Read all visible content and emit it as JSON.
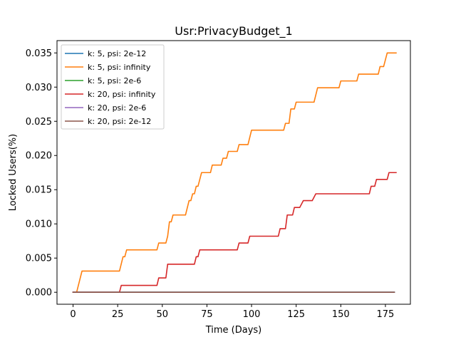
{
  "chart_data": {
    "type": "line",
    "title": "Usr:PrivacyBudget_1",
    "xlabel": "Time (Days)",
    "ylabel": "Locked Users(%)",
    "xlim": [
      -9,
      189
    ],
    "ylim": [
      -0.00175,
      0.0368
    ],
    "x_ticks": [
      0,
      25,
      50,
      75,
      100,
      125,
      150,
      175
    ],
    "y_ticks": [
      0.0,
      0.005,
      0.01,
      0.015,
      0.02,
      0.025,
      0.03,
      0.035
    ],
    "x_tick_labels": [
      "0",
      "25",
      "50",
      "75",
      "100",
      "125",
      "150",
      "175"
    ],
    "y_tick_labels": [
      "0.000",
      "0.005",
      "0.010",
      "0.015",
      "0.020",
      "0.025",
      "0.030",
      "0.035"
    ],
    "legend_position": "top-left",
    "series": [
      {
        "name": "k: 5, psi: 2e-12",
        "color": "#1f77b4",
        "points": [
          [
            0,
            0
          ],
          [
            180,
            0
          ]
        ]
      },
      {
        "name": "k: 5, psi: infinity",
        "color": "#ff7f0e",
        "points": [
          [
            0,
            0
          ],
          [
            2,
            0
          ],
          [
            5,
            0.0031
          ],
          [
            26,
            0.0031
          ],
          [
            28,
            0.0052
          ],
          [
            29,
            0.0052
          ],
          [
            30,
            0.0062
          ],
          [
            47,
            0.0062
          ],
          [
            48,
            0.0072
          ],
          [
            52,
            0.0072
          ],
          [
            53,
            0.0082
          ],
          [
            54,
            0.0103
          ],
          [
            55,
            0.0103
          ],
          [
            56,
            0.0113
          ],
          [
            63,
            0.0113
          ],
          [
            65,
            0.0134
          ],
          [
            66,
            0.0134
          ],
          [
            67,
            0.0144
          ],
          [
            68,
            0.0144
          ],
          [
            69,
            0.0155
          ],
          [
            70,
            0.0155
          ],
          [
            72,
            0.0175
          ],
          [
            77,
            0.0175
          ],
          [
            78,
            0.0186
          ],
          [
            83,
            0.0186
          ],
          [
            84,
            0.0196
          ],
          [
            86,
            0.0196
          ],
          [
            87,
            0.0206
          ],
          [
            92,
            0.0206
          ],
          [
            93,
            0.0216
          ],
          [
            98,
            0.0216
          ],
          [
            100,
            0.0237
          ],
          [
            118,
            0.0237
          ],
          [
            119,
            0.0247
          ],
          [
            121,
            0.0247
          ],
          [
            122,
            0.0268
          ],
          [
            124,
            0.0268
          ],
          [
            125,
            0.0278
          ],
          [
            135,
            0.0278
          ],
          [
            137,
            0.0299
          ],
          [
            149,
            0.0299
          ],
          [
            150,
            0.0309
          ],
          [
            159,
            0.0309
          ],
          [
            160,
            0.0319
          ],
          [
            171,
            0.0319
          ],
          [
            172,
            0.033
          ],
          [
            174,
            0.033
          ],
          [
            176,
            0.035
          ],
          [
            181,
            0.035
          ]
        ]
      },
      {
        "name": "k: 5, psi: 2e-6",
        "color": "#2ca02c",
        "points": [
          [
            0,
            0
          ],
          [
            180,
            0
          ]
        ]
      },
      {
        "name": "k: 20, psi: infinity",
        "color": "#d62728",
        "points": [
          [
            0,
            0
          ],
          [
            26,
            0
          ],
          [
            27,
            0.001
          ],
          [
            47,
            0.001
          ],
          [
            48,
            0.0021
          ],
          [
            52,
            0.0021
          ],
          [
            53,
            0.0041
          ],
          [
            68,
            0.0041
          ],
          [
            69,
            0.0052
          ],
          [
            70,
            0.0052
          ],
          [
            71,
            0.0062
          ],
          [
            92,
            0.0062
          ],
          [
            93,
            0.0072
          ],
          [
            98,
            0.0072
          ],
          [
            99,
            0.0082
          ],
          [
            115,
            0.0082
          ],
          [
            116,
            0.0093
          ],
          [
            119,
            0.0093
          ],
          [
            120,
            0.0113
          ],
          [
            123,
            0.0113
          ],
          [
            124,
            0.0124
          ],
          [
            127,
            0.0124
          ],
          [
            129,
            0.0134
          ],
          [
            134,
            0.0134
          ],
          [
            136,
            0.0144
          ],
          [
            166,
            0.0144
          ],
          [
            167,
            0.0155
          ],
          [
            169,
            0.0155
          ],
          [
            170,
            0.0165
          ],
          [
            176,
            0.0165
          ],
          [
            177,
            0.0175
          ],
          [
            181,
            0.0175
          ]
        ]
      },
      {
        "name": "k: 20, psi: 2e-6",
        "color": "#9467bd",
        "points": [
          [
            0,
            0
          ],
          [
            180,
            0
          ]
        ]
      },
      {
        "name": "k: 20, psi: 2e-12",
        "color": "#8c564b",
        "points": [
          [
            0,
            0
          ],
          [
            180,
            0
          ]
        ]
      }
    ]
  }
}
